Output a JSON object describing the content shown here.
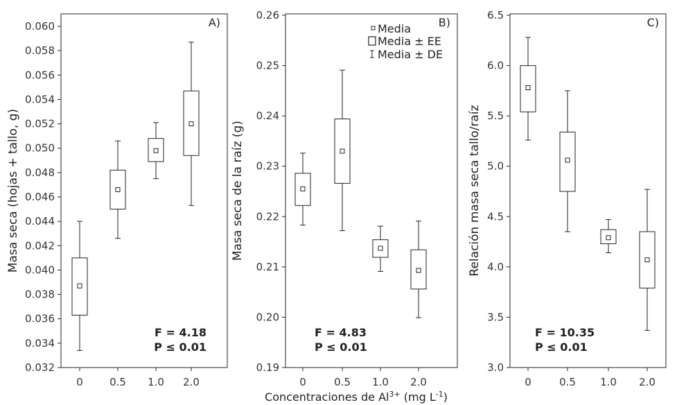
{
  "chart_data": [
    {
      "type": "box",
      "panel_label": "A)",
      "categories": [
        "0",
        "0.5",
        "1.0",
        "2.0"
      ],
      "ylabel": "Masa seca (hojas + tallo, g)",
      "ylim": [
        0.032,
        0.061
      ],
      "yticks": [
        "0.032",
        "0.034",
        "0.036",
        "0.038",
        "0.040",
        "0.042",
        "0.044",
        "0.046",
        "0.048",
        "0.050",
        "0.052",
        "0.054",
        "0.056",
        "0.058",
        "0.060"
      ],
      "mean": [
        0.0387,
        0.0466,
        0.0498,
        0.052
      ],
      "ee_low": [
        0.0363,
        0.045,
        0.0489,
        0.0494
      ],
      "ee_high": [
        0.041,
        0.0482,
        0.0508,
        0.0547
      ],
      "de_low": [
        0.0334,
        0.0426,
        0.0475,
        0.0453
      ],
      "de_high": [
        0.044,
        0.0506,
        0.0521,
        0.0587
      ],
      "stat_f": "F = 4.18",
      "stat_p": "P ≤ 0.01"
    },
    {
      "type": "box",
      "panel_label": "B)",
      "categories": [
        "0",
        "0.5",
        "1.0",
        "2.0"
      ],
      "ylabel": "Masa seca de la raíz (g)",
      "ylim": [
        0.19,
        0.26
      ],
      "yticks": [
        "0.19",
        "0.20",
        "0.21",
        "0.22",
        "0.23",
        "0.24",
        "0.25",
        "0.26"
      ],
      "mean": [
        0.2255,
        0.233,
        0.2137,
        0.2093
      ],
      "ee_low": [
        0.2222,
        0.2266,
        0.2119,
        0.2056
      ],
      "ee_high": [
        0.2286,
        0.2394,
        0.2154,
        0.2134
      ],
      "de_low": [
        0.2183,
        0.2172,
        0.2091,
        0.1999
      ],
      "de_high": [
        0.2326,
        0.2491,
        0.2181,
        0.2191
      ],
      "stat_f": "F = 4.83",
      "stat_p": "P ≤ 0.01"
    },
    {
      "type": "box",
      "panel_label": "C)",
      "categories": [
        "0",
        "0.5",
        "1.0",
        "2.0"
      ],
      "ylabel": "Relación masa seca tallo/raíz",
      "ylim": [
        3.0,
        6.5
      ],
      "yticks": [
        "3.0",
        "3.5",
        "4.0",
        "4.5",
        "5.0",
        "5.5",
        "6.0",
        "6.5"
      ],
      "mean": [
        5.78,
        5.06,
        4.29,
        4.07
      ],
      "ee_low": [
        5.54,
        4.75,
        4.23,
        3.79
      ],
      "ee_high": [
        6.0,
        5.34,
        4.37,
        4.35
      ],
      "de_low": [
        5.26,
        4.35,
        4.14,
        3.37
      ],
      "de_high": [
        6.28,
        5.75,
        4.47,
        4.77
      ],
      "stat_f": "F = 10.35",
      "stat_p": "P ≤ 0.01"
    }
  ],
  "legend": {
    "mean": "Media",
    "ee": "Media ± EE",
    "de": "Media ± DE"
  },
  "xlabel_main": "Concentraciones de Al",
  "xlabel_sup": "3+",
  "xlabel_unit": " (mg L",
  "xlabel_unit_sup": "-1",
  "xlabel_close": ")"
}
